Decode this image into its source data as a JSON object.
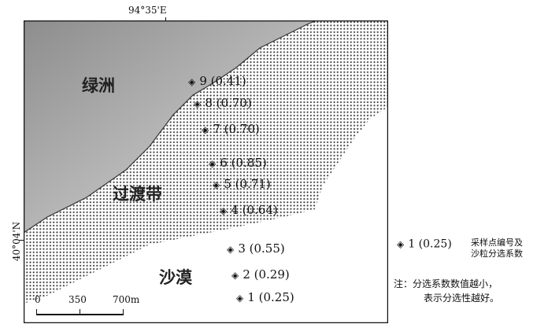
{
  "coordinates": {
    "top_longitude": "94°35'E",
    "left_latitude": "40°04'N"
  },
  "regions": {
    "oasis": "绿洲",
    "transition": "过渡带",
    "desert": "沙漠"
  },
  "points": [
    {
      "label": "9 (0.41)"
    },
    {
      "label": "8 (0.70)"
    },
    {
      "label": "7 (0.70)"
    },
    {
      "label": "6 (0.85)"
    },
    {
      "label": "5 (0.71)"
    },
    {
      "label": "4 (0.64)"
    },
    {
      "label": "3 (0.55)"
    },
    {
      "label": "2 (0.29)"
    },
    {
      "label": "1 (0.25)"
    }
  ],
  "scale_bar": {
    "tick_0": "0",
    "tick_1": "350",
    "tick_2": "700m"
  },
  "legend": {
    "example_label": "1 (0.25)",
    "line1": "采样点编号及",
    "line2": "沙粒分选系数"
  },
  "note": {
    "line1": "注：分选系数数值越小，",
    "line2": "表示分选性越好。"
  },
  "colors": {
    "oasis_fill": "#a9a9a9",
    "hatch_color": "#555555",
    "desert_fill": "#ffffff"
  }
}
